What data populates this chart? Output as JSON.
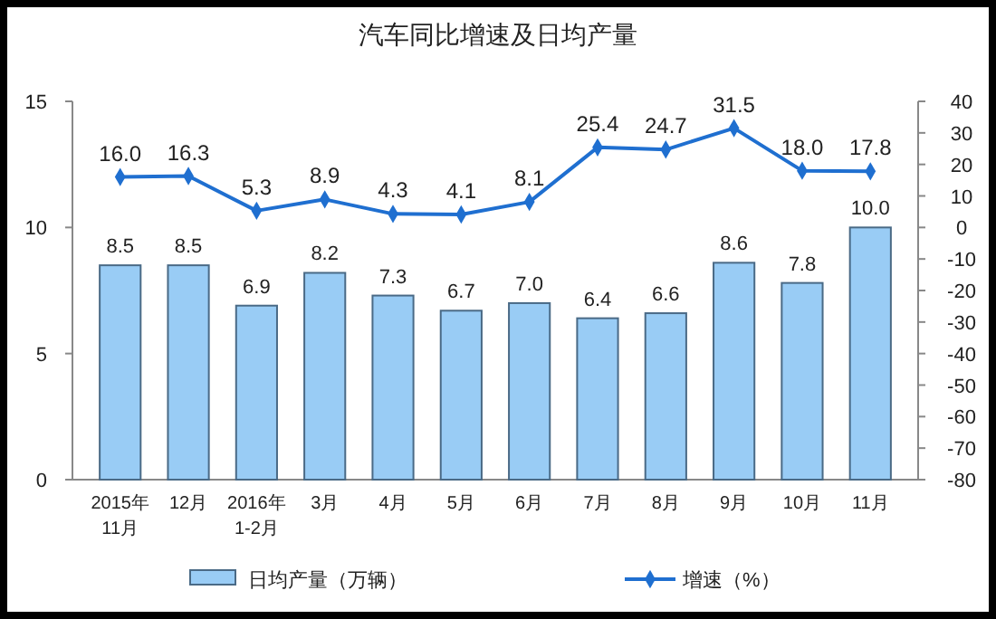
{
  "chart_data": {
    "type": "bar",
    "title": "汽车同比增速及日均产量",
    "categories": [
      "2015年\n11月",
      "12月",
      "2016年\n1-2月",
      "3月",
      "4月",
      "5月",
      "6月",
      "7月",
      "8月",
      "9月",
      "10月",
      "11月"
    ],
    "series": [
      {
        "name": "日均产量（万辆）",
        "color": "#99ccf5",
        "values": [
          8.5,
          8.5,
          6.9,
          8.2,
          7.3,
          6.7,
          7.0,
          6.4,
          6.6,
          8.6,
          7.8,
          10.0
        ],
        "value_labels": [
          "8.5",
          "8.5",
          "6.9",
          "8.2",
          "7.3",
          "6.7",
          "7.0",
          "6.4",
          "6.6",
          "8.6",
          "7.8",
          "10.0"
        ]
      },
      {
        "name": "增速（%）",
        "type": "line",
        "axis": "y2",
        "color": "#1f6fd0",
        "values": [
          16.0,
          16.3,
          5.3,
          8.9,
          4.3,
          4.1,
          8.1,
          25.4,
          24.7,
          31.5,
          18.0,
          17.8
        ],
        "value_labels": [
          "16.0",
          "16.3",
          "5.3",
          "8.9",
          "4.3",
          "4.1",
          "8.1",
          "25.4",
          "24.7",
          "31.5",
          "18.0",
          "17.8"
        ]
      }
    ],
    "ylim": [
      0,
      15
    ],
    "yticks": [
      0,
      5,
      10,
      15
    ],
    "y2lim": [
      -80,
      40
    ],
    "y2ticks": [
      -80,
      -70,
      -60,
      -50,
      -40,
      -30,
      -20,
      -10,
      0,
      10,
      20,
      30,
      40
    ],
    "marker": "diamond",
    "legend": "bottom",
    "grid": false
  }
}
